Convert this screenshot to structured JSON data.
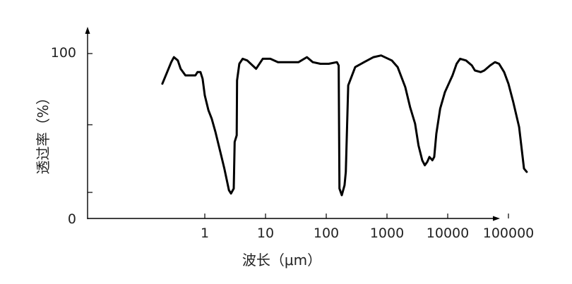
{
  "chart_data": {
    "type": "line",
    "xlabel": "波长（μm）",
    "ylabel": "透过率（%）",
    "x_scale": "log",
    "x_ticks": [
      {
        "value": 1,
        "label": "1"
      },
      {
        "value": 10,
        "label": "10"
      },
      {
        "value": 100,
        "label": "100"
      },
      {
        "value": 1000,
        "label": "1000"
      },
      {
        "value": 10000,
        "label": "10000"
      },
      {
        "value": 100000,
        "label": "100000"
      }
    ],
    "y_ticks": [
      {
        "value": 0,
        "label": "0"
      },
      {
        "value": 100,
        "label": "100"
      }
    ],
    "ylim": [
      0,
      100
    ],
    "grid": false,
    "series": [
      {
        "color": "#000000",
        "points": [
          [
            0.2,
            81
          ],
          [
            0.24,
            88
          ],
          [
            0.28,
            94
          ],
          [
            0.31,
            97
          ],
          [
            0.36,
            95
          ],
          [
            0.4,
            90
          ],
          [
            0.48,
            86
          ],
          [
            0.6,
            86
          ],
          [
            0.7,
            86
          ],
          [
            0.76,
            88
          ],
          [
            0.85,
            88
          ],
          [
            0.92,
            84
          ],
          [
            1.0,
            74
          ],
          [
            1.15,
            65
          ],
          [
            1.3,
            60
          ],
          [
            1.5,
            52
          ],
          [
            1.8,
            40
          ],
          [
            2.1,
            30
          ],
          [
            2.5,
            17
          ],
          [
            2.7,
            15
          ],
          [
            3.0,
            18
          ],
          [
            3.1,
            46
          ],
          [
            3.35,
            50
          ],
          [
            3.4,
            83
          ],
          [
            3.7,
            93
          ],
          [
            4.2,
            96
          ],
          [
            5.0,
            95
          ],
          [
            7.0,
            90
          ],
          [
            9.0,
            96
          ],
          [
            12.0,
            96
          ],
          [
            16.0,
            94
          ],
          [
            25.0,
            94
          ],
          [
            35.0,
            94
          ],
          [
            48.0,
            97
          ],
          [
            60.0,
            94
          ],
          [
            80.0,
            93
          ],
          [
            110.0,
            93
          ],
          [
            150.0,
            94
          ],
          [
            160.0,
            92
          ],
          [
            165.0,
            18
          ],
          [
            180.0,
            14
          ],
          [
            200.0,
            20
          ],
          [
            210.0,
            28
          ],
          [
            230.0,
            80
          ],
          [
            300.0,
            91
          ],
          [
            420.0,
            94
          ],
          [
            600.0,
            97
          ],
          [
            800.0,
            98
          ],
          [
            1200.0,
            95
          ],
          [
            1500.0,
            91
          ],
          [
            2000.0,
            79
          ],
          [
            2400.0,
            67
          ],
          [
            2900.0,
            57
          ],
          [
            3300.0,
            44
          ],
          [
            3800.0,
            35
          ],
          [
            4200.0,
            32
          ],
          [
            4600.0,
            34
          ],
          [
            5000.0,
            37
          ],
          [
            5600.0,
            35
          ],
          [
            6000.0,
            37
          ],
          [
            6500.0,
            51
          ],
          [
            7500.0,
            66
          ],
          [
            9000.0,
            76
          ],
          [
            12000.0,
            86
          ],
          [
            14000.0,
            93
          ],
          [
            16000.0,
            96
          ],
          [
            20000.0,
            95
          ],
          [
            25000.0,
            92
          ],
          [
            28000.0,
            89
          ],
          [
            35000.0,
            88
          ],
          [
            40000.0,
            89
          ],
          [
            50000.0,
            92
          ],
          [
            60000.0,
            94
          ],
          [
            70000.0,
            93
          ],
          [
            85000.0,
            88
          ],
          [
            100000.0,
            81
          ],
          [
            120000.0,
            70
          ],
          [
            150000.0,
            55
          ],
          [
            170000.0,
            38
          ],
          [
            180000.0,
            30
          ],
          [
            200000.0,
            28
          ]
        ]
      }
    ]
  }
}
